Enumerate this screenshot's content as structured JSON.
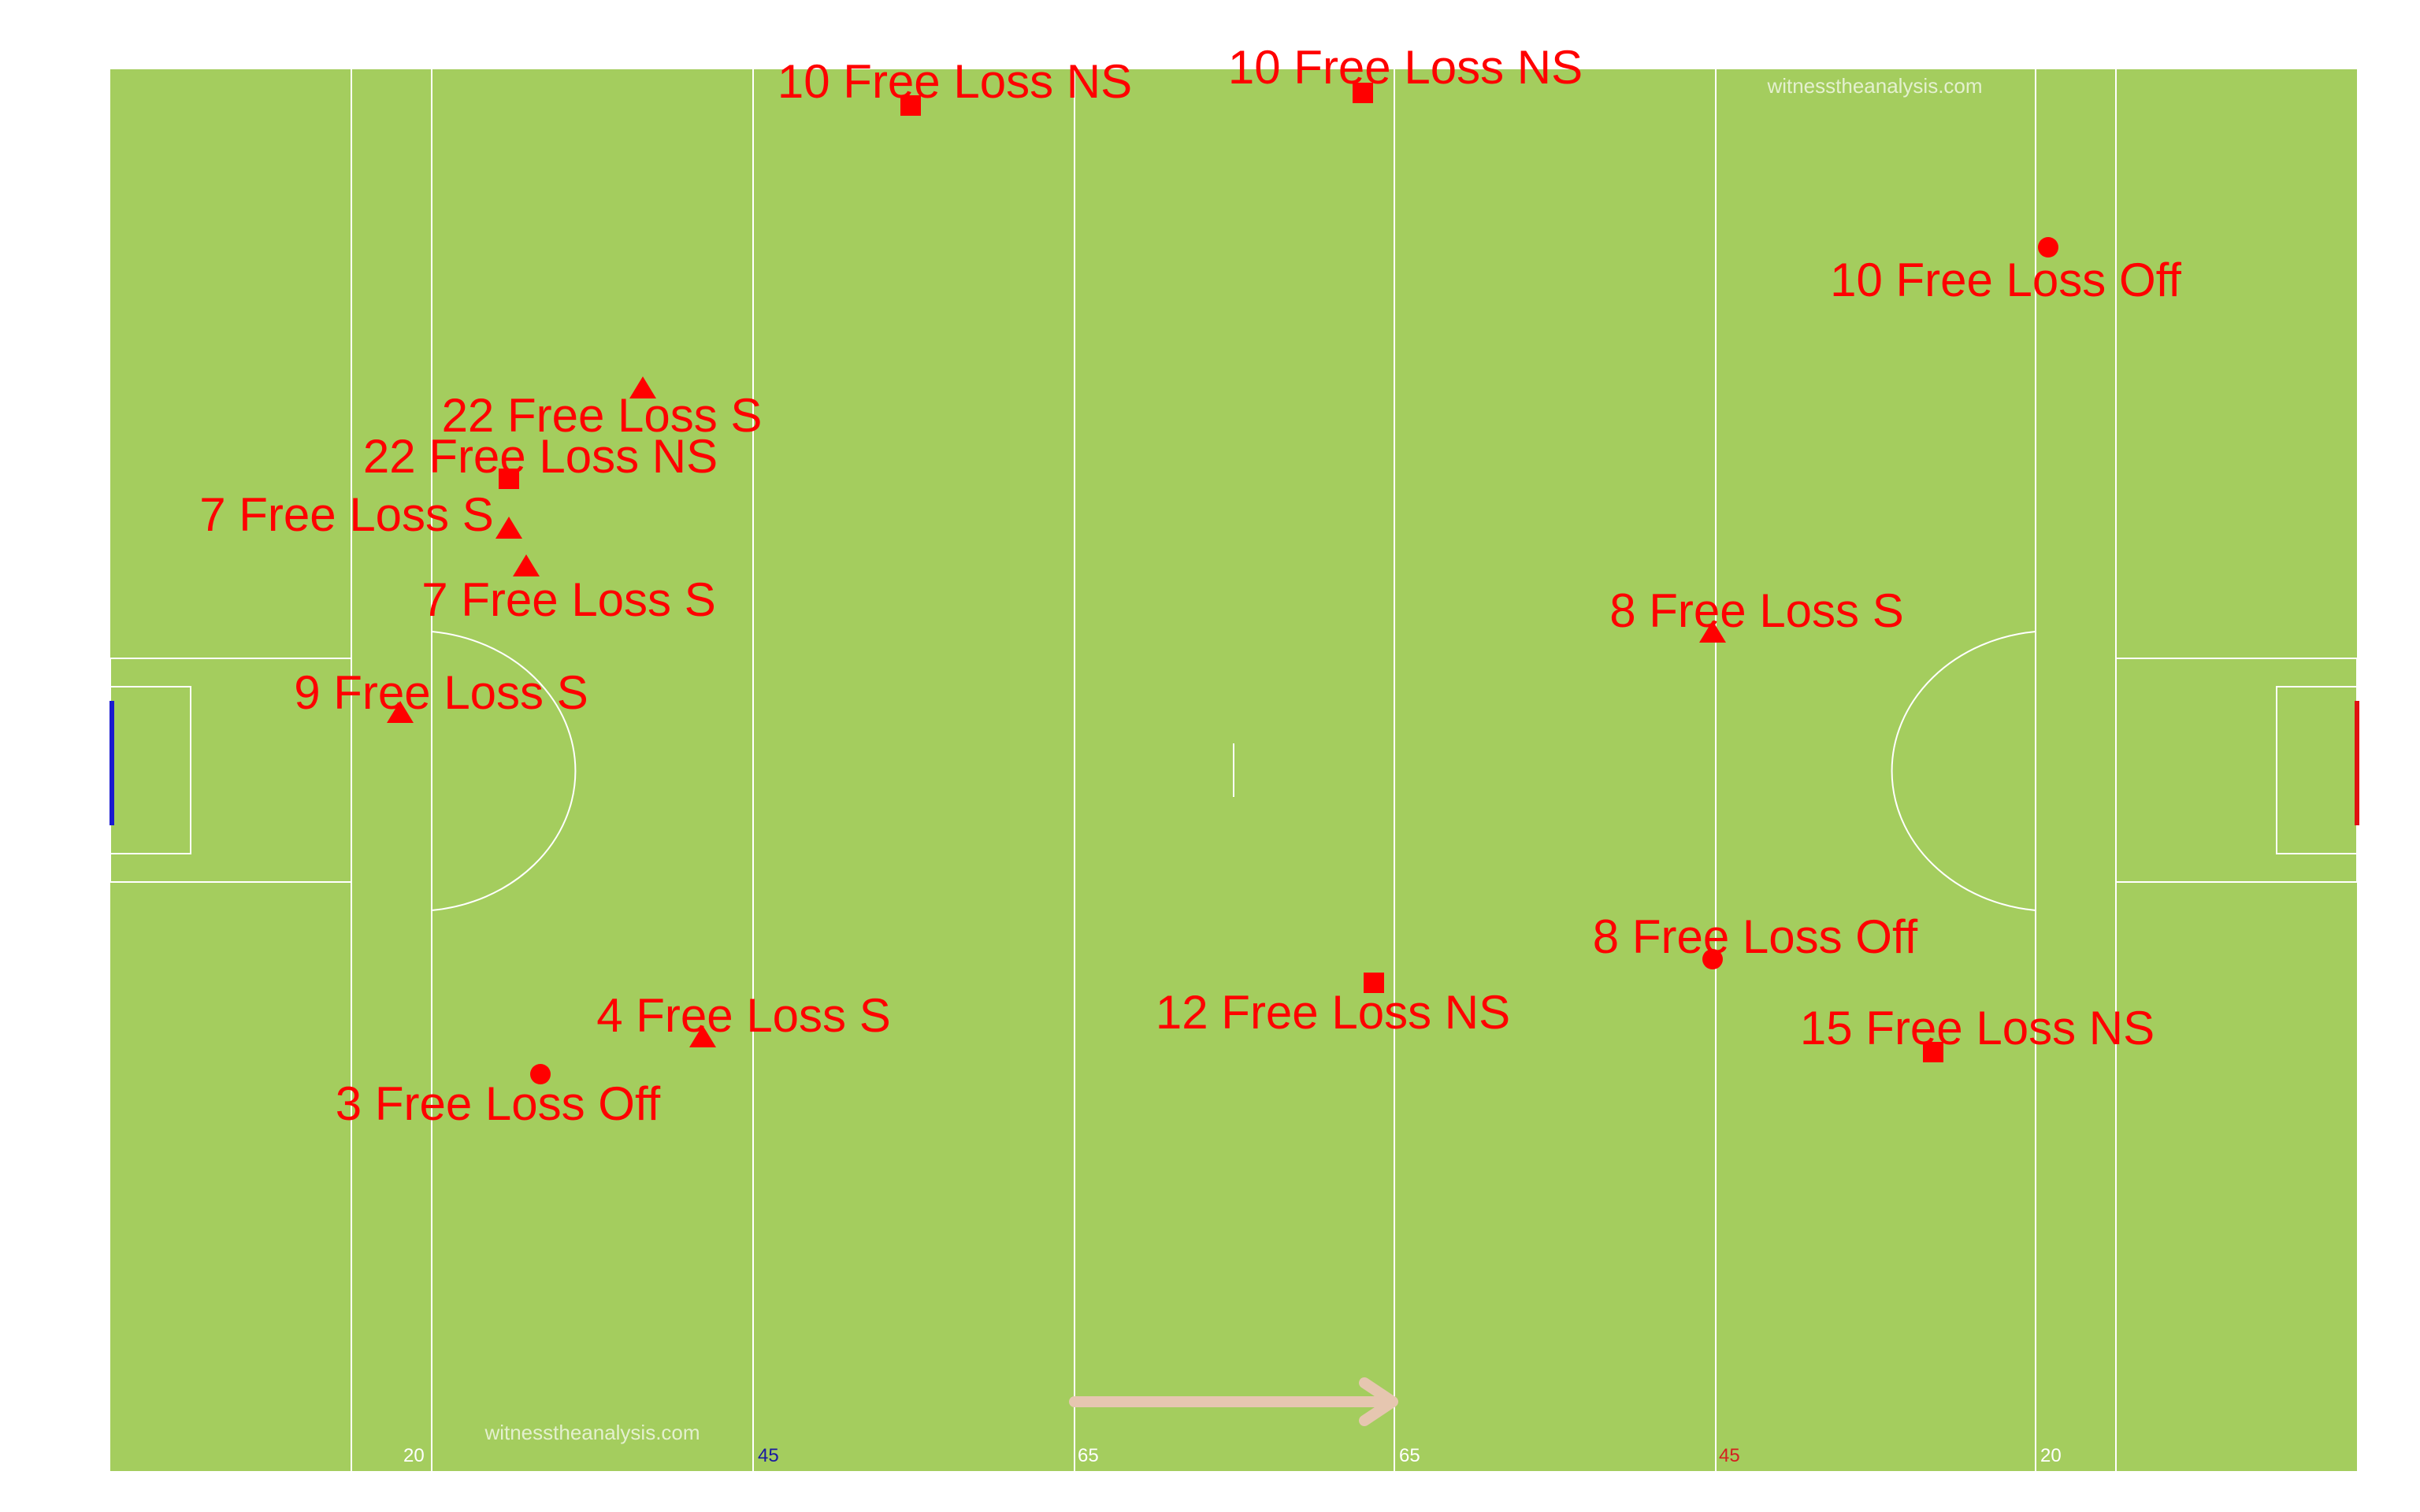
{
  "pitch": {
    "grass_color": "#a4cd5e",
    "line_color": "#ffffff",
    "watermarks": [
      "witnesstheanalysis.com",
      "witnesstheanalysis.com"
    ],
    "distance_labels": [
      {
        "text": "20",
        "color": "#ffffff"
      },
      {
        "text": "45",
        "color": "#1a1aa0"
      },
      {
        "text": "65",
        "color": "#ffffff"
      },
      {
        "text": "65",
        "color": "#ffffff"
      },
      {
        "text": "45",
        "color": "#d42020"
      },
      {
        "text": "20",
        "color": "#ffffff"
      }
    ],
    "left_goal_color": "#1a1ad0",
    "right_goal_color": "#e01010",
    "direction_arrow_color": "#e6c6b0"
  },
  "events": [
    {
      "label": "10 Free Loss NS",
      "shape": "square",
      "color": "#ff0000"
    },
    {
      "label": "10 Free Loss NS",
      "shape": "square",
      "color": "#ff0000"
    },
    {
      "label": "10 Free Loss Off",
      "shape": "circle",
      "color": "#ff0000"
    },
    {
      "label": "22 Free Loss S",
      "shape": "triangle",
      "color": "#ff0000"
    },
    {
      "label": "22 Free Loss NS",
      "shape": "square",
      "color": "#ff0000"
    },
    {
      "label": "7 Free Loss S",
      "shape": "triangle",
      "color": "#ff0000"
    },
    {
      "label": "7 Free Loss S",
      "shape": "triangle",
      "color": "#ff0000"
    },
    {
      "label": "9 Free Loss S",
      "shape": "triangle",
      "color": "#ff0000"
    },
    {
      "label": "8 Free Loss S",
      "shape": "triangle",
      "color": "#ff0000"
    },
    {
      "label": "8 Free Loss Off",
      "shape": "circle",
      "color": "#ff0000"
    },
    {
      "label": "4 Free Loss S",
      "shape": "triangle",
      "color": "#ff0000"
    },
    {
      "label": "12 Free Loss NS",
      "shape": "square",
      "color": "#ff0000"
    },
    {
      "label": "15 Free Loss NS",
      "shape": "square",
      "color": "#ff0000"
    },
    {
      "label": "3 Free Loss Off",
      "shape": "circle",
      "color": "#ff0000"
    }
  ]
}
